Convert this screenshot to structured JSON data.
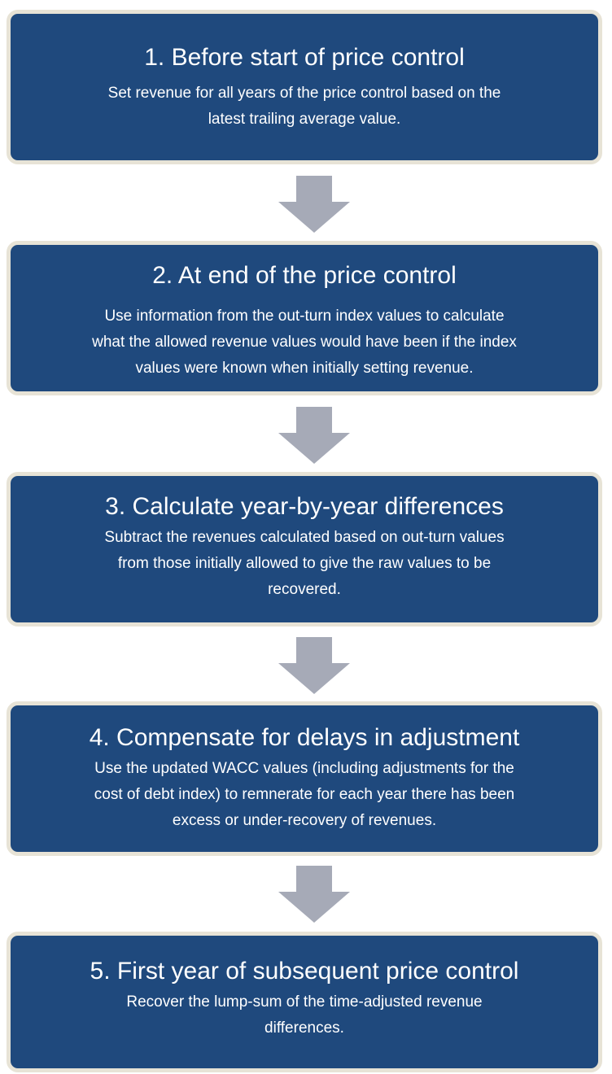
{
  "steps": [
    {
      "title": "1. Before start of price control",
      "lines": [
        "Set revenue for all years of the price control based on the",
        "latest trailing average value."
      ]
    },
    {
      "title": "2. At end of the price control",
      "lines": [
        "Use information from the out-turn index values to calculate",
        "what the allowed revenue values would have been if the index",
        "values were known when initially setting revenue."
      ]
    },
    {
      "title": "3. Calculate year-by-year differences",
      "lines": [
        "Subtract the revenues calculated based on out-turn values",
        "from those initially allowed to give the raw values to be",
        "recovered."
      ]
    },
    {
      "title": "4. Compensate for delays in adjustment",
      "lines": [
        "Use the updated WACC values (including adjustments for the",
        "cost of debt index) to remnerate for each year there has been",
        "excess or under-recovery of revenues."
      ]
    },
    {
      "title": "5. First year of subsequent price control",
      "lines": [
        "Recover the lump-sum of the time-adjusted revenue",
        "differences."
      ]
    }
  ]
}
